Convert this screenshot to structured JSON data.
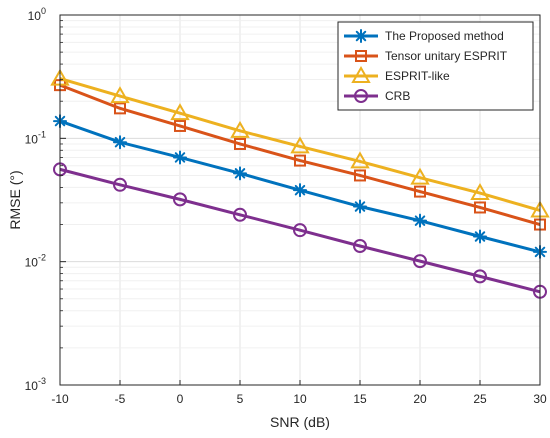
{
  "chart_data": {
    "type": "line",
    "title": "",
    "xlabel": "SNR (dB)",
    "ylabel": "RMSE (°)",
    "x": [
      -10,
      -5,
      0,
      5,
      10,
      15,
      20,
      25,
      30
    ],
    "xlim": [
      -10,
      30
    ],
    "ylim": [
      0.001,
      1
    ],
    "yscale": "log",
    "x_ticks": [
      "-10",
      "-5",
      "0",
      "5",
      "10",
      "15",
      "20",
      "25",
      "30"
    ],
    "y_ticks": [
      {
        "value": 1,
        "base": "10",
        "exp": "0"
      },
      {
        "value": 0.1,
        "base": "10",
        "exp": "-1"
      },
      {
        "value": 0.01,
        "base": "10",
        "exp": "-2"
      },
      {
        "value": 0.001,
        "base": "10",
        "exp": "-3"
      }
    ],
    "grid": true,
    "legend_position": "top-right",
    "series": [
      {
        "name": "The Proposed method",
        "color": "#0072BD",
        "marker": "asterisk",
        "values": [
          0.138,
          0.093,
          0.07,
          0.052,
          0.038,
          0.028,
          0.0215,
          0.016,
          0.012
        ]
      },
      {
        "name": "Tensor unitary ESPRIT",
        "color": "#D95319",
        "marker": "square",
        "values": [
          0.27,
          0.175,
          0.126,
          0.09,
          0.066,
          0.05,
          0.037,
          0.0275,
          0.02
        ]
      },
      {
        "name": "ESPRIT-like",
        "color": "#EDB120",
        "marker": "triangle",
        "values": [
          0.305,
          0.22,
          0.16,
          0.115,
          0.086,
          0.065,
          0.048,
          0.036,
          0.026
        ]
      },
      {
        "name": "CRB",
        "color": "#7E2F8E",
        "marker": "circle",
        "values": [
          0.056,
          0.042,
          0.032,
          0.024,
          0.018,
          0.0134,
          0.0101,
          0.0076,
          0.0057
        ]
      }
    ]
  }
}
